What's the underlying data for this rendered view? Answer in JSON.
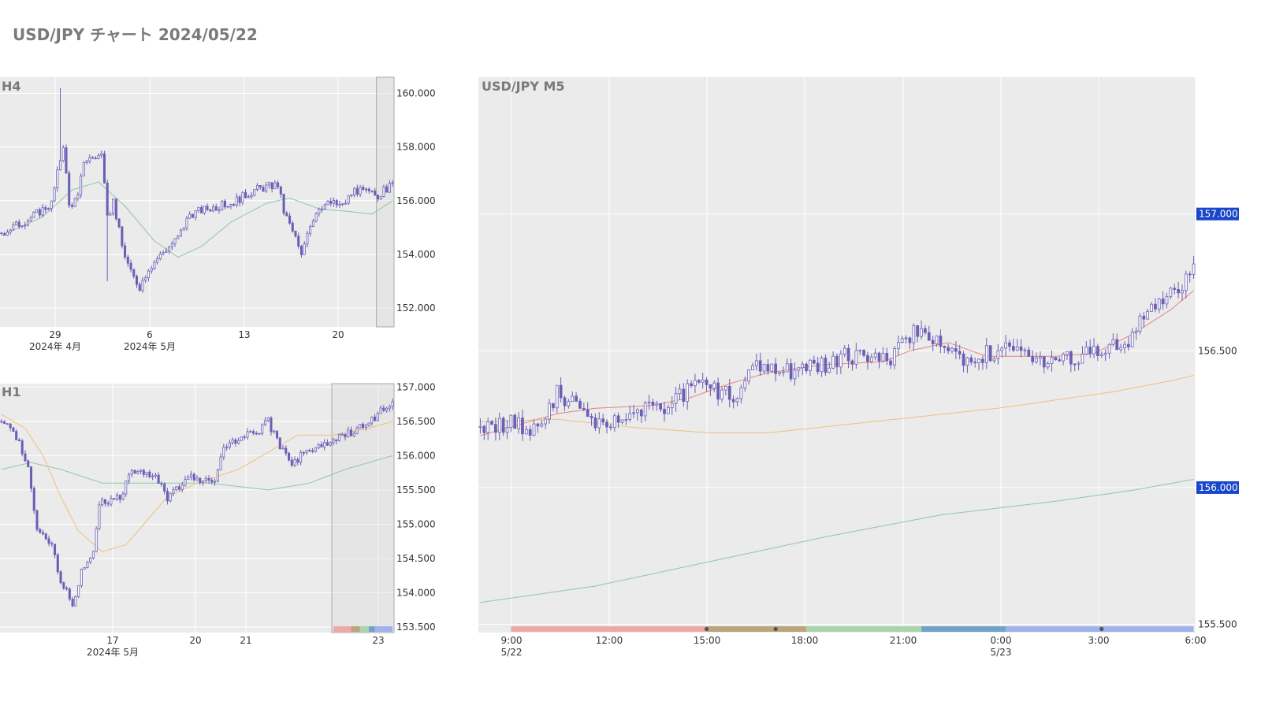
{
  "title": "USD/JPY チャート 2024/05/22",
  "colors": {
    "background": "#ffffff",
    "plot_bg": "#ebebeb",
    "grid": "#ffffff",
    "candle": "#6a5fb5",
    "ma_red": "#e8837e",
    "ma_orange": "#f0bf7f",
    "ma_green": "#8fc7a4",
    "price_tag": "#1a47c9",
    "title_text": "#7a7a7a",
    "tick_text": "#333333",
    "highlight_border": "#aaaaaa"
  },
  "chart_data": [
    {
      "id": "h4",
      "type": "candlestick",
      "title": "H4",
      "ylim": [
        151.3,
        160.6
      ],
      "yticks": [
        "160.000",
        "158.000",
        "156.000",
        "154.000",
        "152.000"
      ],
      "ytick_values": [
        160,
        158,
        156,
        154,
        152
      ],
      "xticks": [
        {
          "label": "29",
          "sub": "2024年 4月"
        },
        {
          "label": "6",
          "sub": "2024年 5月"
        },
        {
          "label": "13",
          "sub": ""
        },
        {
          "label": "20",
          "sub": ""
        }
      ],
      "anchors": [
        [
          0,
          154.8
        ],
        [
          9,
          155.3
        ],
        [
          17,
          155.9
        ],
        [
          21,
          158.1
        ],
        [
          23,
          155.8
        ],
        [
          26,
          156.1
        ],
        [
          28,
          157.5
        ],
        [
          34,
          157.7
        ],
        [
          36,
          155.3
        ],
        [
          38,
          156.0
        ],
        [
          41,
          154.3
        ],
        [
          44,
          153.3
        ],
        [
          47,
          152.8
        ],
        [
          50,
          153.5
        ],
        [
          56,
          154.2
        ],
        [
          60,
          154.6
        ],
        [
          64,
          155.5
        ],
        [
          70,
          155.7
        ],
        [
          78,
          155.9
        ],
        [
          86,
          156.4
        ],
        [
          94,
          156.6
        ],
        [
          96,
          155.6
        ],
        [
          100,
          154.6
        ],
        [
          102,
          153.9
        ],
        [
          104,
          154.9
        ],
        [
          108,
          155.8
        ],
        [
          112,
          155.9
        ],
        [
          116,
          155.8
        ],
        [
          120,
          156.4
        ],
        [
          128,
          156.2
        ],
        [
          133,
          156.6
        ]
      ],
      "candle_count": 134,
      "spikes": [
        {
          "i": 20,
          "high": 160.2
        },
        {
          "i": 36,
          "low": 153.0
        }
      ],
      "ma_lines": [
        {
          "color_key": "ma_green",
          "points": [
            [
              0,
              154.7
            ],
            [
              14,
              155.4
            ],
            [
              24,
              156.4
            ],
            [
              33,
              156.7
            ],
            [
              42,
              155.8
            ],
            [
              52,
              154.5
            ],
            [
              60,
              153.9
            ],
            [
              68,
              154.3
            ],
            [
              78,
              155.2
            ],
            [
              90,
              155.9
            ],
            [
              98,
              156.1
            ],
            [
              108,
              155.7
            ],
            [
              118,
              155.6
            ],
            [
              126,
              155.5
            ],
            [
              133,
              156.0
            ]
          ]
        }
      ],
      "highlight": {
        "from": 128,
        "to": 133
      }
    },
    {
      "id": "h1",
      "type": "candlestick",
      "title": "H1",
      "ylim": [
        153.42,
        157.05
      ],
      "yticks": [
        "157.000",
        "156.500",
        "156.000",
        "155.500",
        "155.000",
        "154.500",
        "154.000",
        "153.500"
      ],
      "ytick_values": [
        157,
        156.5,
        156,
        155.5,
        155,
        154.5,
        154,
        153.5
      ],
      "xticks": [
        {
          "label": "17",
          "sub": "2024年 5月"
        },
        {
          "label": "20",
          "sub": ""
        },
        {
          "label": "21",
          "sub": ""
        },
        {
          "label": "23",
          "sub": ""
        }
      ],
      "anchors": [
        [
          0,
          156.5
        ],
        [
          6,
          156.2
        ],
        [
          9,
          155.8
        ],
        [
          12,
          154.9
        ],
        [
          17,
          154.7
        ],
        [
          20,
          154.2
        ],
        [
          24,
          153.8
        ],
        [
          27,
          154.3
        ],
        [
          31,
          154.6
        ],
        [
          33,
          155.3
        ],
        [
          40,
          155.4
        ],
        [
          44,
          155.8
        ],
        [
          52,
          155.7
        ],
        [
          56,
          155.4
        ],
        [
          64,
          155.7
        ],
        [
          72,
          155.6
        ],
        [
          75,
          156.1
        ],
        [
          82,
          156.3
        ],
        [
          86,
          156.3
        ],
        [
          90,
          156.5
        ],
        [
          94,
          156.1
        ],
        [
          98,
          155.9
        ],
        [
          104,
          156.1
        ],
        [
          112,
          156.2
        ],
        [
          120,
          156.4
        ],
        [
          127,
          156.6
        ],
        [
          132,
          156.8
        ]
      ],
      "candle_count": 133,
      "spikes": [],
      "ma_lines": [
        {
          "color_key": "ma_green",
          "points": [
            [
              0,
              155.8
            ],
            [
              10,
              155.9
            ],
            [
              20,
              155.8
            ],
            [
              34,
              155.6
            ],
            [
              50,
              155.6
            ],
            [
              70,
              155.6
            ],
            [
              90,
              155.5
            ],
            [
              104,
              155.6
            ],
            [
              116,
              155.8
            ],
            [
              132,
              156.0
            ]
          ]
        },
        {
          "color_key": "ma_orange",
          "points": [
            [
              0,
              156.6
            ],
            [
              8,
              156.4
            ],
            [
              14,
              156.0
            ],
            [
              20,
              155.4
            ],
            [
              26,
              154.9
            ],
            [
              34,
              154.6
            ],
            [
              42,
              154.7
            ],
            [
              48,
              155.0
            ],
            [
              56,
              155.4
            ],
            [
              66,
              155.6
            ],
            [
              80,
              155.8
            ],
            [
              92,
              156.1
            ],
            [
              100,
              156.3
            ],
            [
              112,
              156.3
            ],
            [
              124,
              156.4
            ],
            [
              132,
              156.5
            ]
          ]
        }
      ],
      "highlight": {
        "from": 112,
        "to": 132
      },
      "sessions": [
        {
          "from": 112,
          "to": 118,
          "color": "#f0a7a7"
        },
        {
          "from": 118,
          "to": 121,
          "color": "#b9a67a"
        },
        {
          "from": 121,
          "to": 124,
          "color": "#a9d6a9"
        },
        {
          "from": 124,
          "to": 126,
          "color": "#6fa3c9"
        },
        {
          "from": 126,
          "to": 132,
          "color": "#9fb1ee"
        }
      ]
    },
    {
      "id": "m5",
      "type": "candlestick",
      "title": "USD/JPY M5",
      "ylim": [
        155.47,
        157.5
      ],
      "yticks": [
        "156.500",
        "155.500"
      ],
      "ytick_values": [
        156.5,
        155.5
      ],
      "price_tags": [
        {
          "label": "157.000",
          "value": 157.0
        },
        {
          "label": "156.000",
          "value": 156.0
        }
      ],
      "xticks": [
        {
          "label": "9:00",
          "sub": "5/22"
        },
        {
          "label": "12:00",
          "sub": ""
        },
        {
          "label": "15:00",
          "sub": ""
        },
        {
          "label": "18:00",
          "sub": ""
        },
        {
          "label": "21:00",
          "sub": ""
        },
        {
          "label": "0:00",
          "sub": "5/23"
        },
        {
          "label": "3:00",
          "sub": ""
        },
        {
          "label": "6:00",
          "sub": ""
        }
      ],
      "anchors": [
        [
          0,
          156.22
        ],
        [
          8,
          156.24
        ],
        [
          15,
          156.2
        ],
        [
          20,
          156.35
        ],
        [
          28,
          156.25
        ],
        [
          32,
          156.24
        ],
        [
          40,
          156.28
        ],
        [
          48,
          156.3
        ],
        [
          56,
          156.37
        ],
        [
          66,
          156.33
        ],
        [
          72,
          156.44
        ],
        [
          82,
          156.43
        ],
        [
          92,
          156.46
        ],
        [
          100,
          156.5
        ],
        [
          106,
          156.45
        ],
        [
          110,
          156.57
        ],
        [
          118,
          156.54
        ],
        [
          124,
          156.5
        ],
        [
          128,
          156.44
        ],
        [
          132,
          156.49
        ],
        [
          140,
          156.52
        ],
        [
          146,
          156.47
        ],
        [
          150,
          156.46
        ],
        [
          156,
          156.49
        ],
        [
          162,
          156.5
        ],
        [
          168,
          156.52
        ],
        [
          172,
          156.6
        ],
        [
          176,
          156.66
        ],
        [
          180,
          156.71
        ],
        [
          186,
          156.8
        ]
      ],
      "candle_count": 187,
      "spikes": [],
      "ma_lines": [
        {
          "color_key": "ma_red",
          "points": [
            [
              0,
              156.19
            ],
            [
              10,
              156.23
            ],
            [
              20,
              156.27
            ],
            [
              30,
              156.29
            ],
            [
              45,
              156.3
            ],
            [
              55,
              156.33
            ],
            [
              65,
              156.38
            ],
            [
              75,
              156.42
            ],
            [
              90,
              156.45
            ],
            [
              105,
              156.46
            ],
            [
              112,
              156.5
            ],
            [
              122,
              156.53
            ],
            [
              132,
              156.48
            ],
            [
              150,
              156.48
            ],
            [
              160,
              156.49
            ],
            [
              170,
              156.56
            ],
            [
              180,
              156.65
            ],
            [
              186,
              156.72
            ]
          ]
        },
        {
          "color_key": "ma_orange",
          "points": [
            [
              0,
              156.24
            ],
            [
              20,
              156.25
            ],
            [
              40,
              156.22
            ],
            [
              60,
              156.2
            ],
            [
              75,
              156.2
            ],
            [
              95,
              156.23
            ],
            [
              115,
              156.26
            ],
            [
              135,
              156.29
            ],
            [
              150,
              156.32
            ],
            [
              165,
              156.35
            ],
            [
              180,
              156.39
            ],
            [
              186,
              156.41
            ]
          ]
        },
        {
          "color_key": "ma_green",
          "points": [
            [
              0,
              155.58
            ],
            [
              30,
              155.64
            ],
            [
              60,
              155.73
            ],
            [
              90,
              155.82
            ],
            [
              120,
              155.9
            ],
            [
              150,
              155.95
            ],
            [
              170,
              155.99
            ],
            [
              186,
              156.03
            ]
          ]
        }
      ],
      "sessions": [
        {
          "from": 8,
          "to": 59,
          "color": "#f0a7a7"
        },
        {
          "from": 59,
          "to": 85,
          "color": "#b9a67a"
        },
        {
          "from": 85,
          "to": 115,
          "color": "#a9d6a9"
        },
        {
          "from": 115,
          "to": 137,
          "color": "#6fa3c9"
        },
        {
          "from": 137,
          "to": 186,
          "color": "#9fb1ee"
        }
      ],
      "session_markers": [
        59,
        77,
        162
      ]
    }
  ]
}
